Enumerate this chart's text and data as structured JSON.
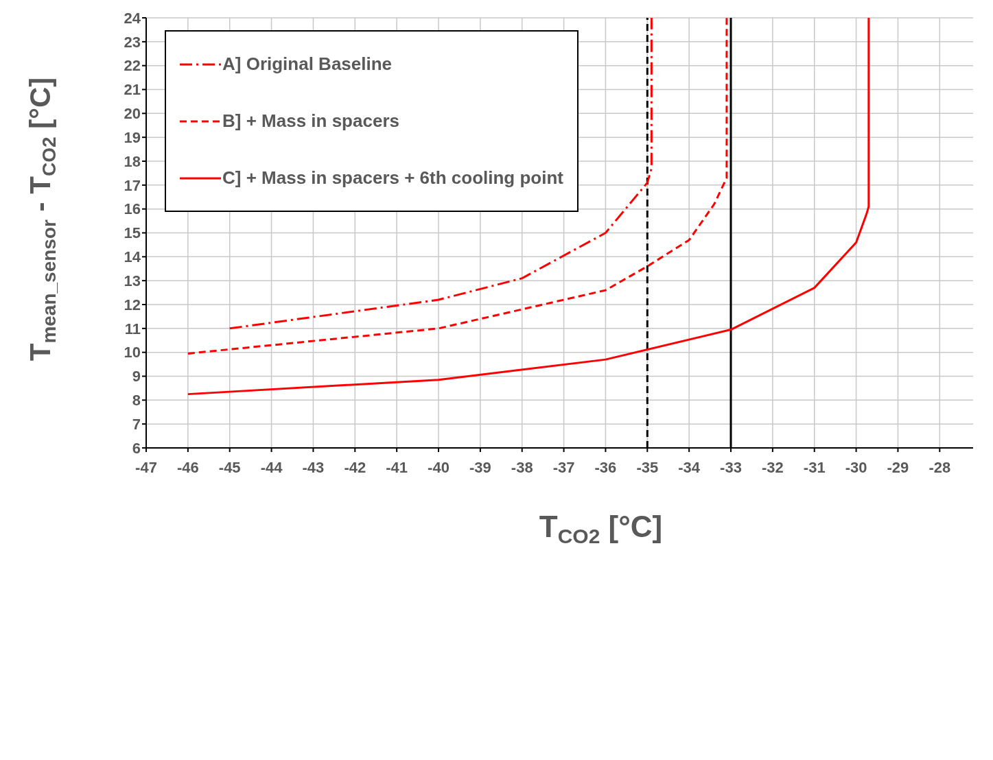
{
  "chart_data": {
    "type": "line",
    "xlabel": "T$_{CO2}$  [°C]",
    "ylabel": "T$_{mean_sensor}$ - T$_{CO2}$  [°C]",
    "xlim": [
      -47,
      -27.2
    ],
    "xticks": [
      -47,
      -46,
      -45,
      -44,
      -43,
      -42,
      -41,
      -40,
      -39,
      -38,
      -37,
      -36,
      -35,
      -34,
      -33,
      -32,
      -31,
      -30,
      -29,
      -28
    ],
    "ylim": [
      6,
      24
    ],
    "yticks": [
      6,
      7,
      8,
      9,
      10,
      11,
      12,
      13,
      14,
      15,
      16,
      17,
      18,
      19,
      20,
      21,
      22,
      23,
      24
    ],
    "grid": true,
    "legend": "top left",
    "marker": "none",
    "series": [
      {
        "name": "A] Original Baseline",
        "color": "#ff0000",
        "line_style": "dashdot",
        "x": [
          -45,
          -40,
          -38,
          -36,
          -35,
          -34.9,
          -34.9
        ],
        "values": [
          11.0,
          12.2,
          13.1,
          15.0,
          17.1,
          17.7,
          24
        ]
      },
      {
        "name": "B] + Mass in spacers",
        "color": "#ff0000",
        "line_style": "dashed",
        "x": [
          -46,
          -40,
          -36,
          -35,
          -34,
          -33.4,
          -33.1,
          -33.1
        ],
        "values": [
          9.95,
          11.0,
          12.6,
          13.6,
          14.7,
          16.2,
          17.3,
          24
        ]
      },
      {
        "name": "C] + Mass in spacers + 6th cooling point",
        "color": "#ff0000",
        "line_style": "solid",
        "x": [
          -46,
          -40,
          -36,
          -33,
          -31,
          -30,
          -29.75,
          -29.7,
          -29.7
        ],
        "values": [
          8.25,
          8.85,
          9.7,
          10.95,
          12.7,
          14.6,
          15.8,
          16.1,
          24
        ]
      }
    ],
    "ref_lines": [
      {
        "axis": "x",
        "value": -35,
        "color": "#000000",
        "line_style": "dashed"
      },
      {
        "axis": "x",
        "value": -33,
        "color": "#000000",
        "line_style": "solid"
      }
    ]
  }
}
